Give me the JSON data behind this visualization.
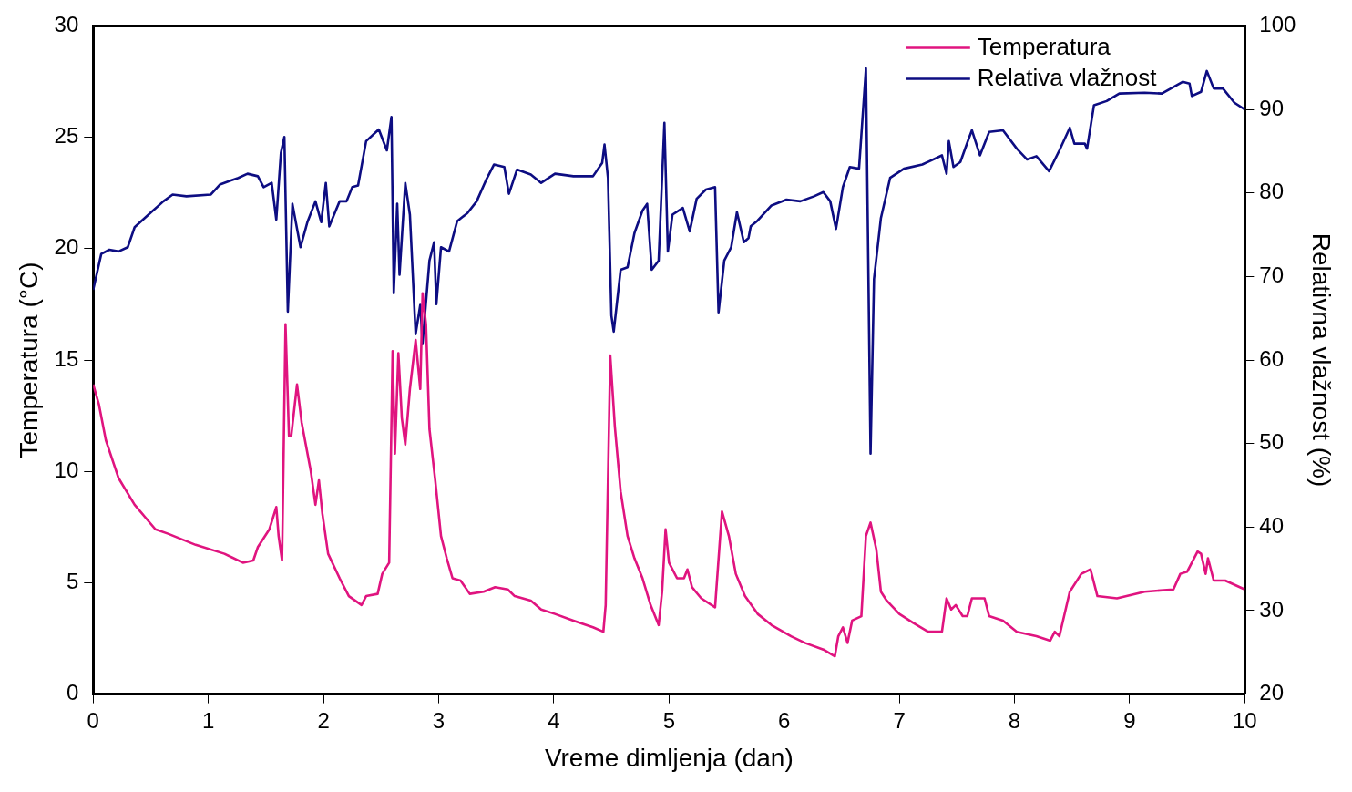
{
  "chart_data": {
    "type": "line",
    "xlabel": "Vreme dimljenja (dan)",
    "ylabel": "Temperatura (°C)",
    "y2label": "Relativna vlažnost (%)",
    "xlim": [
      0,
      10
    ],
    "xticks": [
      0,
      1,
      2,
      3,
      4,
      5,
      6,
      7,
      8,
      9,
      10
    ],
    "ylim": [
      0,
      30
    ],
    "yticks": [
      0,
      5,
      10,
      15,
      20,
      25,
      30
    ],
    "y2lim": [
      20,
      100
    ],
    "y2ticks": [
      20,
      30,
      40,
      50,
      60,
      70,
      80,
      90,
      100
    ],
    "legend": "top right",
    "grid": false,
    "marker": "none",
    "line_style": "solid",
    "series": [
      {
        "name": "Temperatura",
        "color": "#e0147f",
        "x": [
          0,
          0.05,
          0.11,
          0.22,
          0.36,
          0.54,
          0.65,
          0.89,
          1.14,
          1.3,
          1.39,
          1.43,
          1.53,
          1.59,
          1.61,
          1.64,
          1.67,
          1.7,
          1.72,
          1.77,
          1.81,
          1.89,
          1.93,
          1.96,
          1.99,
          2.04,
          2.14,
          2.22,
          2.33,
          2.37,
          2.47,
          2.51,
          2.57,
          2.6,
          2.62,
          2.65,
          2.68,
          2.71,
          2.75,
          2.8,
          2.84,
          2.86,
          2.89,
          2.92,
          2.97,
          3.02,
          3.07,
          3.12,
          3.19,
          3.27,
          3.39,
          3.49,
          3.6,
          3.66,
          3.8,
          3.89,
          4.01,
          4.17,
          4.34,
          4.43,
          4.45,
          4.49,
          4.53,
          4.58,
          4.64,
          4.7,
          4.77,
          4.84,
          4.91,
          4.94,
          4.97,
          5,
          5.07,
          5.13,
          5.16,
          5.2,
          5.28,
          5.4,
          5.46,
          5.52,
          5.58,
          5.66,
          5.77,
          5.89,
          6.06,
          6.18,
          6.34,
          6.44,
          6.47,
          6.51,
          6.55,
          6.59,
          6.67,
          6.71,
          6.75,
          6.8,
          6.84,
          6.89,
          7,
          7.12,
          7.25,
          7.37,
          7.41,
          7.45,
          7.49,
          7.55,
          7.59,
          7.63,
          7.74,
          7.78,
          7.9,
          8.02,
          8.19,
          8.31,
          8.35,
          8.39,
          8.48,
          8.58,
          8.66,
          8.72,
          8.89,
          9.13,
          9.38,
          9.44,
          9.5,
          9.59,
          9.62,
          9.66,
          9.68,
          9.73,
          9.83,
          10
        ],
        "values": [
          13.9,
          13,
          11.4,
          9.7,
          8.5,
          7.4,
          7.2,
          6.7,
          6.3,
          5.9,
          6,
          6.6,
          7.4,
          8.4,
          7.1,
          6,
          16.6,
          11.6,
          11.6,
          13.9,
          12.2,
          10,
          8.5,
          9.6,
          8.1,
          6.3,
          5.2,
          4.4,
          4,
          4.4,
          4.5,
          5.4,
          5.9,
          15.4,
          10.8,
          15.3,
          12.4,
          11.2,
          13.7,
          15.9,
          13.7,
          18,
          16.6,
          11.9,
          9.6,
          7.1,
          6.1,
          5.2,
          5.1,
          4.5,
          4.6,
          4.8,
          4.7,
          4.4,
          4.2,
          3.8,
          3.6,
          3.3,
          3,
          2.8,
          4,
          15.2,
          12,
          9.1,
          7.1,
          6.1,
          5.2,
          4,
          3.1,
          4.6,
          7.4,
          5.9,
          5.2,
          5.2,
          5.6,
          4.8,
          4.3,
          3.9,
          8.2,
          7.1,
          5.4,
          4.4,
          3.6,
          3.1,
          2.6,
          2.3,
          2,
          1.7,
          2.6,
          3,
          2.3,
          3.3,
          3.5,
          7.1,
          7.7,
          6.5,
          4.6,
          4.2,
          3.6,
          3.2,
          2.8,
          2.8,
          4.3,
          3.8,
          4,
          3.5,
          3.5,
          4.3,
          4.3,
          3.5,
          3.3,
          2.8,
          2.6,
          2.4,
          2.8,
          2.6,
          4.6,
          5.4,
          5.6,
          4.4,
          4.3,
          4.6,
          4.7,
          5.4,
          5.5,
          6.4,
          6.3,
          5.4,
          6.1,
          5.1,
          5.1,
          4.7
        ]
      },
      {
        "name": "Relativa vlažnost",
        "color": "#0d0d82",
        "axis": "y2",
        "x": [
          0,
          0.07,
          0.14,
          0.22,
          0.3,
          0.36,
          0.48,
          0.61,
          0.69,
          0.81,
          1.02,
          1.1,
          1.26,
          1.34,
          1.43,
          1.48,
          1.55,
          1.59,
          1.63,
          1.66,
          1.69,
          1.73,
          1.8,
          1.86,
          1.93,
          1.98,
          2.02,
          2.05,
          2.14,
          2.2,
          2.25,
          2.3,
          2.37,
          2.48,
          2.55,
          2.59,
          2.61,
          2.64,
          2.66,
          2.71,
          2.75,
          2.8,
          2.84,
          2.86,
          2.92,
          2.96,
          2.98,
          3.02,
          3.09,
          3.16,
          3.25,
          3.33,
          3.41,
          3.48,
          3.57,
          3.61,
          3.68,
          3.8,
          3.89,
          4.01,
          4.17,
          4.34,
          4.42,
          4.44,
          4.47,
          4.5,
          4.52,
          4.58,
          4.64,
          4.7,
          4.77,
          4.81,
          4.85,
          4.91,
          4.96,
          4.99,
          5.03,
          5.12,
          5.18,
          5.24,
          5.32,
          5.4,
          5.43,
          5.48,
          5.54,
          5.59,
          5.65,
          5.69,
          5.71,
          5.77,
          5.89,
          6.02,
          6.14,
          6.26,
          6.34,
          6.4,
          6.45,
          6.51,
          6.57,
          6.65,
          6.71,
          6.75,
          6.78,
          6.84,
          6.92,
          7.04,
          7.2,
          7.37,
          7.41,
          7.43,
          7.47,
          7.53,
          7.6,
          7.63,
          7.7,
          7.78,
          7.9,
          8.02,
          8.11,
          8.19,
          8.3,
          8.39,
          8.48,
          8.52,
          8.61,
          8.63,
          8.69,
          8.8,
          8.91,
          9.13,
          9.28,
          9.46,
          9.52,
          9.54,
          9.62,
          9.67,
          9.73,
          9.81,
          9.91,
          10
        ],
        "values": [
          68.4,
          72.7,
          73.2,
          73,
          73.5,
          75.9,
          77.4,
          79,
          79.8,
          79.6,
          79.8,
          81,
          81.8,
          82.3,
          82,
          80.7,
          81.2,
          76.8,
          84.8,
          86.7,
          65.8,
          78.7,
          73.5,
          76.5,
          79,
          76.5,
          81.2,
          76,
          79,
          79,
          80.7,
          80.9,
          86.2,
          87.6,
          85.1,
          89.1,
          68,
          78.7,
          70.2,
          81.2,
          77.4,
          63.1,
          66.6,
          62,
          71.9,
          74.1,
          66.7,
          73.5,
          73,
          76.6,
          77.6,
          79,
          81.5,
          83.4,
          83.1,
          79.9,
          82.8,
          82.2,
          81.2,
          82.3,
          82,
          82,
          83.6,
          85.8,
          81.8,
          65.3,
          63.4,
          70.8,
          71.1,
          75.2,
          77.9,
          78.7,
          70.8,
          71.9,
          88.4,
          73,
          77.4,
          78.2,
          75.4,
          79.3,
          80.4,
          80.7,
          65.7,
          71.9,
          73.5,
          77.7,
          74.1,
          74.6,
          76,
          76.7,
          78.5,
          79.2,
          79,
          79.6,
          80.1,
          79,
          75.7,
          80.7,
          83.1,
          82.9,
          94.9,
          48.8,
          69.7,
          77,
          81.8,
          82.9,
          83.4,
          84.5,
          82.3,
          86.2,
          83.1,
          83.7,
          86.4,
          87.5,
          84.5,
          87.3,
          87.5,
          85.3,
          84,
          84.4,
          82.6,
          85.1,
          87.8,
          85.9,
          85.9,
          85.3,
          90.5,
          91,
          91.9,
          92,
          91.9,
          93.3,
          93.1,
          91.6,
          92.1,
          94.6,
          92.5,
          92.5,
          90.8,
          90
        ]
      }
    ]
  }
}
